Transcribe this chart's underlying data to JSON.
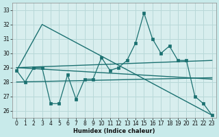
{
  "xlabel": "Humidex (Indice chaleur)",
  "bg_color": "#c8eaea",
  "plot_bg": "#d8eeee",
  "grid_color": "#b8d8d8",
  "line_color": "#1a7070",
  "xlim": [
    -0.5,
    23.5
  ],
  "ylim": [
    25.5,
    33.5
  ],
  "yticks": [
    26,
    27,
    28,
    29,
    30,
    31,
    32,
    33
  ],
  "xticks": [
    0,
    1,
    2,
    3,
    4,
    5,
    6,
    7,
    8,
    9,
    10,
    11,
    12,
    13,
    14,
    15,
    16,
    17,
    18,
    19,
    20,
    21,
    22,
    23
  ],
  "series": [
    {
      "x": [
        0,
        1,
        2,
        3,
        4,
        5,
        6,
        7,
        8,
        9,
        10,
        11,
        12,
        13,
        14,
        15,
        16,
        17,
        18,
        19,
        20,
        21,
        22,
        23
      ],
      "y": [
        28.8,
        28.0,
        29.0,
        29.0,
        26.5,
        26.5,
        28.5,
        26.8,
        28.2,
        28.2,
        29.7,
        28.8,
        29.0,
        29.5,
        30.7,
        32.8,
        31.0,
        30.0,
        30.5,
        29.5,
        29.5,
        27.0,
        26.5,
        25.7
      ],
      "marker": "s",
      "ms": 2.5,
      "lw": 0.9
    },
    {
      "x": [
        0,
        3,
        23
      ],
      "y": [
        28.8,
        32.0,
        25.7
      ],
      "marker": null,
      "ms": 0,
      "lw": 1.0
    },
    {
      "x": [
        0,
        23
      ],
      "y": [
        29.0,
        29.5
      ],
      "marker": null,
      "ms": 0,
      "lw": 1.0
    },
    {
      "x": [
        0,
        23
      ],
      "y": [
        29.0,
        28.2
      ],
      "marker": null,
      "ms": 0,
      "lw": 1.0
    },
    {
      "x": [
        0,
        23
      ],
      "y": [
        28.0,
        28.3
      ],
      "marker": null,
      "ms": 0,
      "lw": 1.0
    }
  ]
}
